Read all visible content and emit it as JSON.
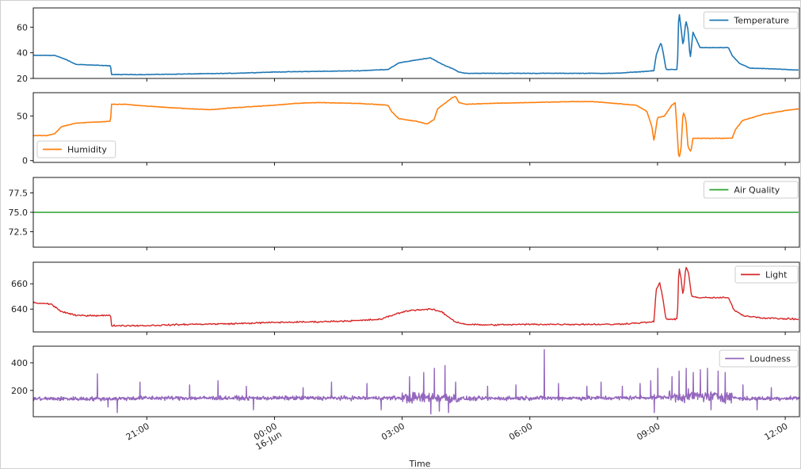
{
  "chart_data": {
    "type": "line",
    "xlabel": "Time",
    "x_range": [
      "15-Jun 18:20",
      "16-Jun 12:20"
    ],
    "x_ticks": [
      {
        "time": "21:00",
        "label": "21:00",
        "sublabel": ""
      },
      {
        "time": "00:00",
        "label": "00:00",
        "sublabel": "16-Jun"
      },
      {
        "time": "03:00",
        "label": "03:00",
        "sublabel": ""
      },
      {
        "time": "06:00",
        "label": "06:00",
        "sublabel": ""
      },
      {
        "time": "09:00",
        "label": "09:00",
        "sublabel": ""
      },
      {
        "time": "12:00",
        "label": "12:00",
        "sublabel": ""
      }
    ],
    "panels": [
      {
        "name": "Temperature",
        "color": "#1f77b4",
        "legend": "top-right",
        "ylim": [
          20,
          75
        ],
        "yticks": [
          20,
          40,
          60
        ],
        "noise": 0.3,
        "points": [
          [
            "18:20",
            38
          ],
          [
            "18:50",
            38
          ],
          [
            "19:05",
            35
          ],
          [
            "19:20",
            31
          ],
          [
            "20:00",
            30
          ],
          [
            "20:09",
            30
          ],
          [
            "20:10",
            23
          ],
          [
            "20:30",
            23
          ],
          [
            "21:00",
            23
          ],
          [
            "22:00",
            23.5
          ],
          [
            "23:00",
            24
          ],
          [
            "00:00",
            25
          ],
          [
            "01:00",
            25.5
          ],
          [
            "02:00",
            26
          ],
          [
            "02:40",
            27
          ],
          [
            "02:55",
            32
          ],
          [
            "03:15",
            34
          ],
          [
            "03:40",
            36
          ],
          [
            "03:50",
            33
          ],
          [
            "04:00",
            30
          ],
          [
            "04:10",
            28
          ],
          [
            "04:20",
            25
          ],
          [
            "04:30",
            24
          ],
          [
            "05:00",
            24
          ],
          [
            "06:00",
            24
          ],
          [
            "07:00",
            24
          ],
          [
            "08:00",
            24
          ],
          [
            "08:30",
            25
          ],
          [
            "08:55",
            26
          ],
          [
            "08:58",
            38
          ],
          [
            "09:02",
            44
          ],
          [
            "09:05",
            48
          ],
          [
            "09:08",
            40
          ],
          [
            "09:12",
            27
          ],
          [
            "09:20",
            27
          ],
          [
            "09:28",
            27
          ],
          [
            "09:30",
            73
          ],
          [
            "09:33",
            60
          ],
          [
            "09:36",
            45
          ],
          [
            "09:40",
            65
          ],
          [
            "09:43",
            58
          ],
          [
            "09:46",
            35
          ],
          [
            "09:50",
            56
          ],
          [
            "09:55",
            50
          ],
          [
            "10:00",
            44
          ],
          [
            "10:20",
            44
          ],
          [
            "10:40",
            44
          ],
          [
            "10:45",
            38
          ],
          [
            "10:55",
            32
          ],
          [
            "11:10",
            28
          ],
          [
            "11:40",
            27.5
          ],
          [
            "12:20",
            26.5
          ]
        ]
      },
      {
        "name": "Humidity",
        "color": "#ff7f0e",
        "legend": "bottom-left",
        "ylim": [
          -2,
          76
        ],
        "yticks": [
          0,
          50
        ],
        "noise": 0.4,
        "points": [
          [
            "18:20",
            28
          ],
          [
            "18:40",
            28
          ],
          [
            "18:50",
            30
          ],
          [
            "19:00",
            38
          ],
          [
            "19:20",
            42
          ],
          [
            "20:09",
            44
          ],
          [
            "20:10",
            63
          ],
          [
            "20:30",
            63
          ],
          [
            "21:00",
            61
          ],
          [
            "22:00",
            58
          ],
          [
            "22:30",
            57
          ],
          [
            "23:00",
            59
          ],
          [
            "00:00",
            62
          ],
          [
            "00:30",
            64
          ],
          [
            "01:00",
            65
          ],
          [
            "02:00",
            64
          ],
          [
            "02:40",
            62
          ],
          [
            "02:45",
            55
          ],
          [
            "02:55",
            47
          ],
          [
            "03:20",
            44
          ],
          [
            "03:35",
            41
          ],
          [
            "03:45",
            46
          ],
          [
            "03:50",
            58
          ],
          [
            "04:00",
            64
          ],
          [
            "04:10",
            70
          ],
          [
            "04:15",
            72
          ],
          [
            "04:20",
            65
          ],
          [
            "04:30",
            63
          ],
          [
            "05:00",
            64
          ],
          [
            "06:00",
            65
          ],
          [
            "07:00",
            66
          ],
          [
            "07:30",
            66
          ],
          [
            "08:00",
            64
          ],
          [
            "08:30",
            62
          ],
          [
            "08:45",
            55
          ],
          [
            "08:52",
            38
          ],
          [
            "08:55",
            22
          ],
          [
            "09:00",
            48
          ],
          [
            "09:10",
            50
          ],
          [
            "09:20",
            62
          ],
          [
            "09:25",
            65
          ],
          [
            "09:30",
            2
          ],
          [
            "09:33",
            12
          ],
          [
            "09:36",
            55
          ],
          [
            "09:40",
            46
          ],
          [
            "09:43",
            15
          ],
          [
            "09:47",
            10
          ],
          [
            "09:50",
            25
          ],
          [
            "10:00",
            25
          ],
          [
            "10:20",
            25
          ],
          [
            "10:45",
            25
          ],
          [
            "10:50",
            35
          ],
          [
            "11:00",
            45
          ],
          [
            "11:30",
            52
          ],
          [
            "12:00",
            56
          ],
          [
            "12:20",
            58
          ]
        ]
      },
      {
        "name": "Air Quality",
        "color": "#2ca02c",
        "legend": "top-right",
        "ylim": [
          70.5,
          79.5
        ],
        "yticks": [
          72.5,
          75.0,
          77.5
        ],
        "noise": 0,
        "points": [
          [
            "18:20",
            75
          ],
          [
            "12:20",
            75
          ]
        ]
      },
      {
        "name": "Light",
        "color": "#d62728",
        "legend": "top-right",
        "ylim": [
          622,
          677
        ],
        "yticks": [
          640,
          660
        ],
        "noise": 0.9,
        "points": [
          [
            "18:20",
            645
          ],
          [
            "18:45",
            644
          ],
          [
            "19:00",
            638
          ],
          [
            "19:20",
            635
          ],
          [
            "20:09",
            635
          ],
          [
            "20:10",
            627
          ],
          [
            "21:00",
            627
          ],
          [
            "22:00",
            628
          ],
          [
            "23:00",
            628.5
          ],
          [
            "00:00",
            629.5
          ],
          [
            "01:00",
            630
          ],
          [
            "02:00",
            631
          ],
          [
            "02:30",
            632
          ],
          [
            "02:50",
            636
          ],
          [
            "03:10",
            639
          ],
          [
            "03:40",
            640
          ],
          [
            "03:55",
            638
          ],
          [
            "04:05",
            634
          ],
          [
            "04:15",
            630
          ],
          [
            "04:30",
            628
          ],
          [
            "05:00",
            627.5
          ],
          [
            "06:00",
            628
          ],
          [
            "07:00",
            628
          ],
          [
            "08:00",
            628
          ],
          [
            "08:30",
            629
          ],
          [
            "08:55",
            630
          ],
          [
            "08:58",
            655
          ],
          [
            "09:03",
            661
          ],
          [
            "09:07",
            650
          ],
          [
            "09:12",
            632
          ],
          [
            "09:28",
            632
          ],
          [
            "09:30",
            673
          ],
          [
            "09:33",
            665
          ],
          [
            "09:36",
            650
          ],
          [
            "09:40",
            674
          ],
          [
            "09:44",
            668
          ],
          [
            "09:48",
            650
          ],
          [
            "10:00",
            649
          ],
          [
            "10:40",
            649
          ],
          [
            "10:47",
            640
          ],
          [
            "11:00",
            635
          ],
          [
            "11:30",
            633
          ],
          [
            "12:20",
            632
          ]
        ]
      },
      {
        "name": "Loudness",
        "color": "#9467bd",
        "legend": "top-right",
        "ylim": [
          10,
          520
        ],
        "yticks": [
          200,
          400
        ],
        "noise": 22,
        "points": [
          [
            "18:20",
            140
          ],
          [
            "20:10",
            140
          ],
          [
            "21:00",
            145
          ],
          [
            "23:00",
            145
          ],
          [
            "01:00",
            145
          ],
          [
            "02:40",
            145
          ],
          [
            "03:30",
            148
          ],
          [
            "04:00",
            150
          ],
          [
            "04:30",
            140
          ],
          [
            "06:00",
            145
          ],
          [
            "08:00",
            145
          ],
          [
            "09:00",
            150
          ],
          [
            "10:00",
            160
          ],
          [
            "10:40",
            155
          ],
          [
            "11:00",
            140
          ],
          [
            "12:20",
            145
          ]
        ],
        "spikes": [
          [
            "19:50",
            320
          ],
          [
            "20:05",
            80
          ],
          [
            "20:18",
            40
          ],
          [
            "20:50",
            260
          ],
          [
            "22:00",
            240
          ],
          [
            "22:40",
            270
          ],
          [
            "23:20",
            230
          ],
          [
            "23:30",
            60
          ],
          [
            "00:40",
            220
          ],
          [
            "01:20",
            260
          ],
          [
            "02:10",
            250
          ],
          [
            "02:30",
            60
          ],
          [
            "03:10",
            300
          ],
          [
            "03:30",
            330
          ],
          [
            "03:40",
            30
          ],
          [
            "03:45",
            360
          ],
          [
            "03:52",
            50
          ],
          [
            "04:00",
            380
          ],
          [
            "04:05",
            40
          ],
          [
            "04:15",
            260
          ],
          [
            "05:00",
            230
          ],
          [
            "05:40",
            240
          ],
          [
            "06:20",
            495
          ],
          [
            "06:40",
            250
          ],
          [
            "07:20",
            230
          ],
          [
            "07:40",
            260
          ],
          [
            "08:10",
            230
          ],
          [
            "08:35",
            250
          ],
          [
            "08:50",
            270
          ],
          [
            "08:55",
            40
          ],
          [
            "09:00",
            360
          ],
          [
            "09:20",
            300
          ],
          [
            "09:30",
            340
          ],
          [
            "09:40",
            360
          ],
          [
            "09:50",
            330
          ],
          [
            "10:00",
            350
          ],
          [
            "10:10",
            360
          ],
          [
            "10:15",
            60
          ],
          [
            "10:25",
            340
          ],
          [
            "10:35",
            330
          ],
          [
            "11:00",
            240
          ],
          [
            "11:20",
            60
          ],
          [
            "11:40",
            220
          ]
        ],
        "busy_windows": [
          [
            "03:00",
            "04:20"
          ],
          [
            "09:15",
            "10:45"
          ]
        ]
      }
    ]
  }
}
